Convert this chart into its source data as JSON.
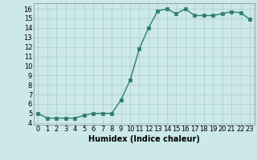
{
  "x": [
    0,
    1,
    2,
    3,
    4,
    5,
    6,
    7,
    8,
    9,
    10,
    11,
    12,
    13,
    14,
    15,
    16,
    17,
    18,
    19,
    20,
    21,
    22,
    23
  ],
  "y": [
    5.0,
    4.5,
    4.5,
    4.5,
    4.5,
    4.8,
    5.0,
    5.0,
    5.0,
    6.4,
    8.5,
    11.8,
    14.0,
    15.8,
    16.0,
    15.5,
    16.0,
    15.3,
    15.3,
    15.3,
    15.5,
    15.7,
    15.6,
    14.9
  ],
  "xlabel": "Humidex (Indice chaleur)",
  "xlim": [
    -0.5,
    23.5
  ],
  "ylim": [
    3.8,
    16.6
  ],
  "yticks": [
    4,
    5,
    6,
    7,
    8,
    9,
    10,
    11,
    12,
    13,
    14,
    15,
    16
  ],
  "xticks": [
    0,
    1,
    2,
    3,
    4,
    5,
    6,
    7,
    8,
    9,
    10,
    11,
    12,
    13,
    14,
    15,
    16,
    17,
    18,
    19,
    20,
    21,
    22,
    23
  ],
  "line_color": "#2d7d6b",
  "marker_color": "#2d7d6b",
  "bg_color": "#cce8e8",
  "grid_color": "#aacccc",
  "font_size": 6.0,
  "xlabel_font_size": 7.0
}
